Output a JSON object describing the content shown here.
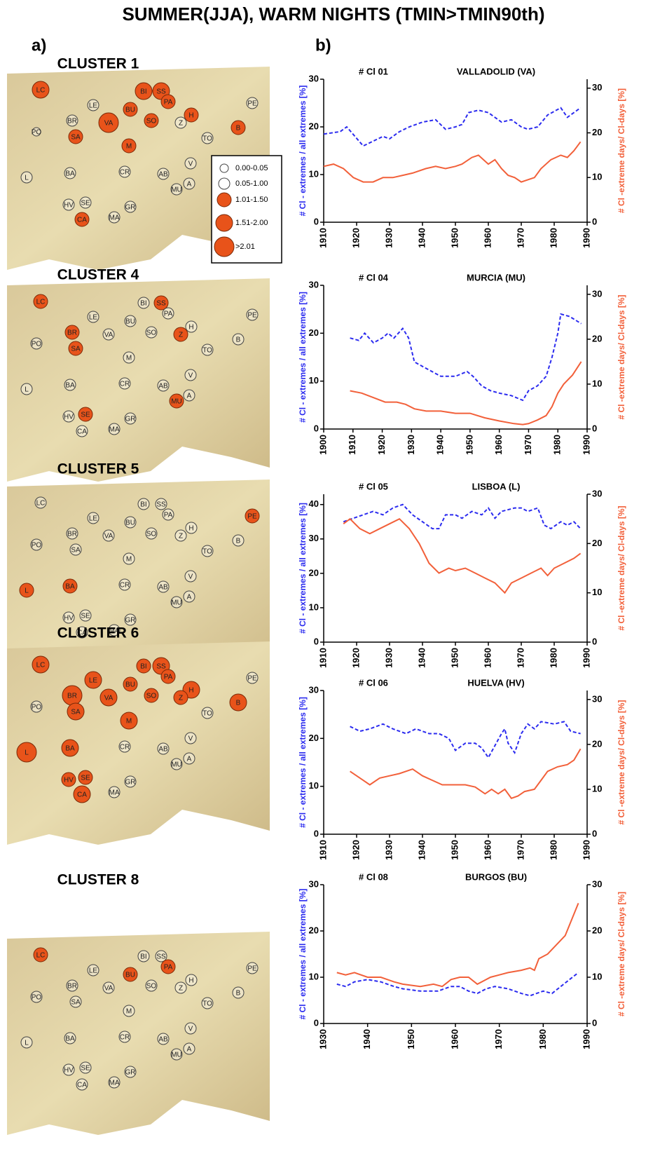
{
  "title": "SUMMER(JJA), WARM NIGHTS (TMIN>TMIN90th)",
  "panel_a": "a)",
  "panel_b": "b)",
  "legend": [
    "0.00-0.05",
    "0.05-1.00",
    "1.01-1.50",
    "1.51-2.00",
    ">2.01"
  ],
  "stations": [
    "LC",
    "BI",
    "SS",
    "PA",
    "PE",
    "LE",
    "BR",
    "BU",
    "VA",
    "SO",
    "H",
    "Z",
    "PO",
    "SA",
    "M",
    "TO",
    "B",
    "L",
    "BA",
    "CR",
    "AB",
    "V",
    "MU",
    "A",
    "HV",
    "SE",
    "CA",
    "MA",
    "GR"
  ],
  "clusters": [
    {
      "title": "CLUSTER 1",
      "classes": [
        3,
        3,
        3,
        2,
        1,
        1,
        1,
        2,
        4,
        2,
        2,
        1,
        0,
        2,
        2,
        1,
        2,
        1,
        1,
        1,
        1,
        1,
        1,
        1,
        1,
        1,
        2,
        1,
        1
      ]
    },
    {
      "title": "CLUSTER 4",
      "classes": [
        2,
        1,
        2,
        1,
        1,
        1,
        2,
        1,
        1,
        1,
        1,
        2,
        1,
        2,
        1,
        1,
        1,
        1,
        1,
        1,
        1,
        1,
        2,
        1,
        1,
        2,
        1,
        1,
        1
      ]
    },
    {
      "title": "CLUSTER 5",
      "classes": [
        1,
        1,
        1,
        1,
        2,
        1,
        1,
        1,
        1,
        1,
        1,
        1,
        1,
        1,
        1,
        1,
        1,
        2,
        2,
        1,
        1,
        1,
        1,
        1,
        1,
        1,
        1,
        1,
        1
      ]
    },
    {
      "title": "CLUSTER 6",
      "classes": [
        3,
        2,
        3,
        2,
        1,
        3,
        4,
        2,
        3,
        2,
        3,
        2,
        1,
        3,
        3,
        1,
        3,
        4,
        3,
        1,
        1,
        1,
        1,
        1,
        2,
        2,
        3,
        1,
        1
      ]
    },
    {
      "title": "CLUSTER 8",
      "classes": [
        2,
        1,
        1,
        2,
        1,
        1,
        1,
        2,
        1,
        1,
        1,
        1,
        1,
        1,
        1,
        1,
        1,
        1,
        1,
        1,
        1,
        1,
        1,
        1,
        1,
        1,
        1,
        1,
        1
      ]
    }
  ],
  "chart_data": [
    {
      "type": "line",
      "title": "# Cl 01",
      "station": "VALLADOLID (VA)",
      "ylabel": "# Cl - extremes / all extremes  [%]",
      "y2label": "# Cl -extreme days/ Cl-days [%]",
      "xlim": [
        1910,
        1990
      ],
      "xticks": [
        1910,
        1920,
        1930,
        1940,
        1950,
        1960,
        1970,
        1980,
        1990
      ],
      "ylim": [
        0,
        30
      ],
      "yticks": [
        0,
        10,
        20,
        30
      ],
      "y2lim": [
        0,
        32
      ],
      "y2ticks": [
        0,
        10,
        20,
        30
      ],
      "series": [
        {
          "color": "#2b2bef",
          "style": "dashed",
          "x": [
            1910,
            1915,
            1917,
            1922,
            1925,
            1928,
            1930,
            1933,
            1936,
            1940,
            1944,
            1947,
            1950,
            1952,
            1954,
            1957,
            1960,
            1964,
            1967,
            1970,
            1972,
            1975,
            1978,
            1982,
            1984,
            1986,
            1988
          ],
          "values": [
            18.5,
            19,
            20,
            16,
            17,
            18,
            17.5,
            19,
            20,
            21,
            21.5,
            19.5,
            20,
            20.5,
            23,
            23.5,
            23,
            21,
            21.5,
            20,
            19.5,
            20,
            22.5,
            24,
            22,
            23,
            24
          ]
        },
        {
          "color": "#f2603a",
          "style": "solid",
          "axis": "y2",
          "x": [
            1910,
            1913,
            1916,
            1919,
            1922,
            1925,
            1928,
            1931,
            1934,
            1937,
            1941,
            1944,
            1947,
            1950,
            1952,
            1955,
            1957,
            1960,
            1962,
            1964,
            1966,
            1968,
            1970,
            1972,
            1974,
            1976,
            1979,
            1982,
            1984,
            1986,
            1988
          ],
          "values": [
            12.5,
            13,
            12,
            10,
            9,
            9,
            10,
            10,
            10.5,
            11,
            12,
            12.5,
            12,
            12.5,
            13,
            14.5,
            15,
            13,
            14,
            12,
            10.5,
            10,
            9,
            9.5,
            10,
            12,
            14,
            15,
            14.5,
            16,
            18
          ]
        }
      ]
    },
    {
      "type": "line",
      "title": "# Cl 04",
      "station": "MURCIA (MU)",
      "ylabel": "# Cl - extremes / all extremes  [%]",
      "y2label": "# Cl -extreme days/ Cl-days [%]",
      "xlim": [
        1900,
        1990
      ],
      "xticks": [
        1900,
        1910,
        1920,
        1930,
        1940,
        1950,
        1960,
        1970,
        1980,
        1990
      ],
      "ylim": [
        0,
        30
      ],
      "yticks": [
        0,
        10,
        20,
        30
      ],
      "y2lim": [
        0,
        32
      ],
      "y2ticks": [
        0,
        10,
        20,
        30
      ],
      "series": [
        {
          "color": "#2b2bef",
          "style": "dashed",
          "x": [
            1909,
            1912,
            1914,
            1917,
            1920,
            1922,
            1924,
            1927,
            1929,
            1931,
            1934,
            1937,
            1940,
            1945,
            1949,
            1951,
            1954,
            1957,
            1960,
            1964,
            1968,
            1970,
            1973,
            1976,
            1978,
            1980,
            1981,
            1984,
            1988
          ],
          "values": [
            19,
            18.5,
            20,
            18,
            19,
            20,
            19,
            21,
            19,
            14,
            13,
            12,
            11,
            11,
            12,
            11,
            9,
            8,
            7.5,
            7,
            6,
            8,
            9,
            11,
            15,
            20,
            24,
            23.5,
            22
          ]
        },
        {
          "color": "#f2603a",
          "style": "solid",
          "axis": "y2",
          "x": [
            1909,
            1913,
            1917,
            1921,
            1925,
            1928,
            1931,
            1935,
            1940,
            1945,
            1950,
            1955,
            1960,
            1965,
            1968,
            1970,
            1973,
            1976,
            1978,
            1980,
            1982,
            1985,
            1988
          ],
          "values": [
            8.5,
            8,
            7,
            6,
            6,
            5.5,
            4.5,
            4,
            4,
            3.5,
            3.5,
            2.5,
            1.8,
            1.2,
            1,
            1.2,
            2,
            3,
            5,
            8,
            10,
            12,
            15
          ]
        }
      ]
    },
    {
      "type": "line",
      "title": "# Cl 05",
      "station": "LISBOA (L)",
      "ylabel": "# Cl - extremes / all extremes  [%]",
      "y2label": "# Cl -extreme days/ Cl-days [%]",
      "xlim": [
        1910,
        1990
      ],
      "xticks": [
        1910,
        1920,
        1930,
        1940,
        1950,
        1960,
        1970,
        1980,
        1990
      ],
      "ylim": [
        0,
        43
      ],
      "yticks": [
        0,
        10,
        20,
        30,
        40
      ],
      "y2lim": [
        0,
        30
      ],
      "y2ticks": [
        0,
        10,
        20,
        30
      ],
      "series": [
        {
          "color": "#2b2bef",
          "style": "dashed",
          "x": [
            1916,
            1919,
            1922,
            1925,
            1928,
            1931,
            1934,
            1937,
            1940,
            1943,
            1945,
            1947,
            1950,
            1952,
            1955,
            1958,
            1960,
            1962,
            1964,
            1968,
            1970,
            1972,
            1975,
            1977,
            1979,
            1982,
            1984,
            1986,
            1988
          ],
          "values": [
            35,
            36,
            37,
            38,
            37,
            39,
            40,
            37,
            35,
            33,
            33,
            37,
            37,
            36,
            38,
            37,
            39,
            36,
            38,
            39,
            39,
            38,
            39,
            34,
            33,
            35,
            34,
            35,
            33
          ]
        },
        {
          "color": "#f2603a",
          "style": "solid",
          "axis": "y2",
          "x": [
            1916,
            1918,
            1921,
            1924,
            1927,
            1930,
            1933,
            1936,
            1939,
            1942,
            1945,
            1948,
            1950,
            1953,
            1956,
            1959,
            1962,
            1965,
            1967,
            1970,
            1973,
            1976,
            1978,
            1980,
            1983,
            1986,
            1988
          ],
          "values": [
            24,
            25,
            23,
            22,
            23,
            24,
            25,
            23,
            20,
            16,
            14,
            15,
            14.5,
            15,
            14,
            13,
            12,
            10,
            12,
            13,
            14,
            15,
            13.5,
            15,
            16,
            17,
            18
          ]
        }
      ]
    },
    {
      "type": "line",
      "title": "# Cl 06",
      "station": "HUELVA (HV)",
      "ylabel": "# Cl - extremes / all extremes  [%]",
      "y2label": "# Cl -extreme days/ Cl-days [%]",
      "xlim": [
        1910,
        1990
      ],
      "xticks": [
        1910,
        1920,
        1930,
        1940,
        1950,
        1960,
        1970,
        1980,
        1990
      ],
      "ylim": [
        0,
        30
      ],
      "yticks": [
        0,
        10,
        20,
        30
      ],
      "y2lim": [
        0,
        32
      ],
      "y2ticks": [
        0,
        10,
        20,
        30
      ],
      "series": [
        {
          "color": "#2b2bef",
          "style": "dashed",
          "x": [
            1918,
            1921,
            1924,
            1928,
            1931,
            1935,
            1938,
            1942,
            1945,
            1948,
            1950,
            1953,
            1956,
            1958,
            1960,
            1962,
            1964,
            1965,
            1966,
            1968,
            1970,
            1972,
            1974,
            1976,
            1980,
            1983,
            1985,
            1988
          ],
          "values": [
            22.5,
            21.5,
            22,
            23,
            22,
            21,
            22,
            21,
            21,
            20,
            17.5,
            19,
            19,
            18,
            16,
            18.5,
            21,
            22,
            19,
            17,
            21,
            23,
            22,
            23.5,
            23,
            23.5,
            21.5,
            21
          ]
        },
        {
          "color": "#f2603a",
          "style": "solid",
          "axis": "y2",
          "x": [
            1918,
            1920,
            1922,
            1924,
            1927,
            1930,
            1933,
            1937,
            1940,
            1943,
            1946,
            1950,
            1953,
            1956,
            1959,
            1961,
            1963,
            1965,
            1967,
            1969,
            1971,
            1974,
            1976,
            1978,
            1981,
            1984,
            1986,
            1988
          ],
          "values": [
            14,
            13,
            12,
            11,
            12.5,
            13,
            13.5,
            14.5,
            13,
            12,
            11,
            11,
            11,
            10.5,
            9,
            10,
            9,
            10,
            8,
            8.5,
            9.5,
            10,
            12,
            14,
            15,
            15.5,
            16.5,
            19
          ]
        }
      ]
    },
    {
      "type": "line",
      "title": "# Cl 08",
      "station": "BURGOS (BU)",
      "ylabel": "# Cl - extremes / all extremes  [%]",
      "y2label": "# Cl -extreme days/ Cl-days [%]",
      "xlim": [
        1930,
        1990
      ],
      "xticks": [
        1930,
        1940,
        1950,
        1960,
        1970,
        1980,
        1990
      ],
      "ylim": [
        0,
        30
      ],
      "yticks": [
        0,
        10,
        20,
        30
      ],
      "y2lim": [
        0,
        30
      ],
      "y2ticks": [
        0,
        10,
        20,
        30
      ],
      "series": [
        {
          "color": "#2b2bef",
          "style": "dashed",
          "x": [
            1933,
            1935,
            1937,
            1940,
            1943,
            1946,
            1948,
            1952,
            1956,
            1959,
            1961,
            1963,
            1965,
            1967,
            1969,
            1972,
            1975,
            1977,
            1980,
            1982,
            1984,
            1986,
            1988
          ],
          "values": [
            8.5,
            8,
            9,
            9.5,
            9,
            8,
            7.5,
            7,
            7,
            8,
            8,
            7,
            6.5,
            7.5,
            8,
            7.5,
            6.5,
            6,
            7,
            6.5,
            8,
            9.5,
            11
          ]
        },
        {
          "color": "#f2603a",
          "style": "solid",
          "axis": "y2",
          "x": [
            1933,
            1935,
            1937,
            1940,
            1943,
            1946,
            1948,
            1952,
            1955,
            1957,
            1959,
            1961,
            1963,
            1965,
            1968,
            1970,
            1972,
            1975,
            1977,
            1978,
            1979,
            1981,
            1983,
            1985,
            1988
          ],
          "values": [
            11,
            10.5,
            11,
            10,
            10,
            9,
            8.5,
            8,
            8.5,
            8,
            9.5,
            10,
            10,
            8.5,
            10,
            10.5,
            11,
            11.5,
            12,
            11.5,
            14,
            15,
            17,
            19,
            26
          ]
        }
      ]
    }
  ]
}
